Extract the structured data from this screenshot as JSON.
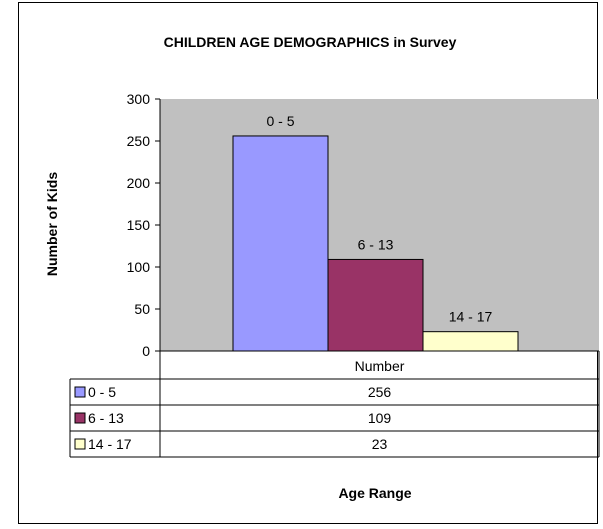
{
  "chart_data": {
    "type": "bar",
    "title": "CHILDREN AGE DEMOGRAPHICS in Survey",
    "xlabel": "Age Range",
    "ylabel": "Number of Kids",
    "categories": [
      "Number"
    ],
    "series": [
      {
        "name": "0 - 5",
        "values": [
          256
        ],
        "color": "#9999FF"
      },
      {
        "name": "6 - 13",
        "values": [
          109
        ],
        "color": "#993366"
      },
      {
        "name": "14 - 17",
        "values": [
          23
        ],
        "color": "#FFFFCC"
      }
    ],
    "ylim": [
      0,
      300
    ],
    "yticks": [
      0,
      50,
      100,
      150,
      200,
      250,
      300
    ],
    "grid": false,
    "plot_background": "#C0C0C0",
    "legend": "data table with legend keys below plot",
    "data_labels": [
      "0 - 5",
      "6 - 13",
      "14 - 17"
    ],
    "table_values": [
      "256",
      "109",
      "23"
    ]
  }
}
